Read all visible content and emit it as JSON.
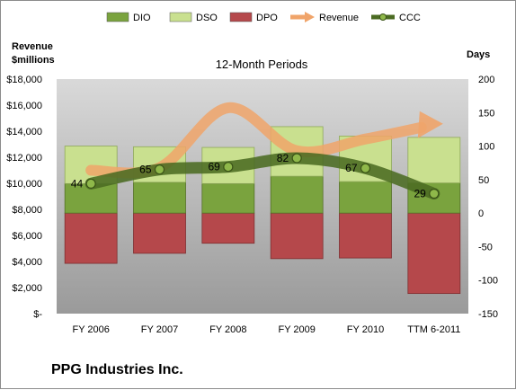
{
  "chart_data": {
    "type": "bar",
    "title": "12-Month Periods",
    "categories": [
      "FY 2006",
      "FY 2007",
      "FY 2008",
      "FY 2009",
      "FY 2010",
      "TTM 6-2011"
    ],
    "left_axis": {
      "label_line1": "Revenue",
      "label_line2": "$millions",
      "ylim": [
        0,
        18000
      ],
      "ticks": [
        "$18,000",
        "$16,000",
        "$14,000",
        "$12,000",
        "$10,000",
        "$8,000",
        "$6,000",
        "$4,000",
        "$2,000",
        "$-"
      ]
    },
    "right_axis": {
      "label": "Days",
      "ylim": [
        -150,
        200
      ],
      "ticks": [
        "200",
        "150",
        "100",
        "50",
        "0",
        "-50",
        "-100",
        "-150"
      ]
    },
    "series": [
      {
        "name": "DIO",
        "kind": "stacked-bar",
        "axis": "right",
        "values": [
          44,
          46,
          44,
          55,
          47,
          45
        ]
      },
      {
        "name": "DSO",
        "kind": "stacked-bar",
        "axis": "right",
        "values": [
          56,
          53,
          54,
          74,
          68,
          68
        ]
      },
      {
        "name": "DPO",
        "kind": "negative-bar",
        "axis": "right",
        "values": [
          75,
          60,
          45,
          68,
          67,
          120
        ]
      },
      {
        "name": "Revenue",
        "kind": "arrow-line",
        "axis": "left",
        "values": [
          11000,
          11200,
          15800,
          12500,
          13400,
          14500
        ]
      },
      {
        "name": "CCC",
        "kind": "line-markers",
        "axis": "right",
        "values": [
          44,
          65,
          69,
          82,
          67,
          29
        ]
      }
    ],
    "ccc_labels": [
      "44",
      "65",
      "69",
      "82",
      "67",
      "29"
    ],
    "legend_position": "top",
    "colors": {
      "DIO": "#7aa33e",
      "DSO": "#c9e08f",
      "DPO": "#b5484b",
      "Revenue": "#f0a46a",
      "CCC": "#4b6b22",
      "plot_bg_top": "#d9d9d9",
      "plot_bg_bottom": "#9a9a9a"
    },
    "grid": false
  },
  "footer": {
    "company": "PPG Industries Inc."
  }
}
